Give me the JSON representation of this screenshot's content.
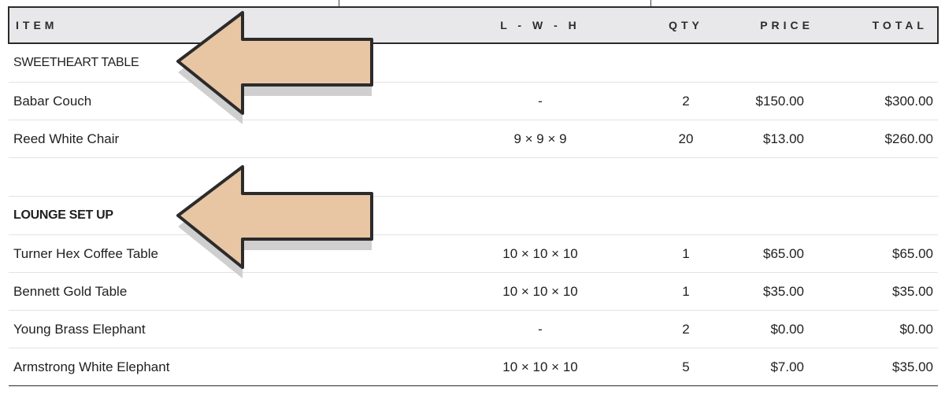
{
  "header": {
    "item": "ITEM",
    "dims": "L - W - H",
    "qty": "QTY",
    "price": "PRICE",
    "total": "TOTAL"
  },
  "sections": [
    {
      "title": "SWEETHEART TABLE",
      "rows": [
        {
          "item": "Babar Couch",
          "dims": "-",
          "qty": "2",
          "price": "$150.00",
          "total": "$300.00"
        },
        {
          "item": "Reed White Chair",
          "dims": "9 × 9 × 9",
          "qty": "20",
          "price": "$13.00",
          "total": "$260.00"
        }
      ]
    },
    {
      "title": "LOUNGE SET UP",
      "rows": [
        {
          "item": "Turner Hex Coffee Table",
          "dims": "10 × 10 × 10",
          "qty": "1",
          "price": "$65.00",
          "total": "$65.00"
        },
        {
          "item": "Bennett Gold Table",
          "dims": "10 × 10 × 10",
          "qty": "1",
          "price": "$35.00",
          "total": "$35.00"
        },
        {
          "item": "Young Brass Elephant",
          "dims": "-",
          "qty": "2",
          "price": "$0.00",
          "total": "$0.00"
        },
        {
          "item": "Armstrong White Elephant",
          "dims": "10 × 10 × 10",
          "qty": "5",
          "price": "$7.00",
          "total": "$35.00"
        }
      ]
    }
  ],
  "annotations": {
    "arrow_icon": "left-arrow-icon",
    "arrow_fill": "#e8c6a4",
    "arrow_stroke": "#2b2b2b"
  },
  "colors": {
    "header_bg": "#e8e8ea",
    "border": "#2a2a2a",
    "row_divider": "#e3e3e3"
  }
}
